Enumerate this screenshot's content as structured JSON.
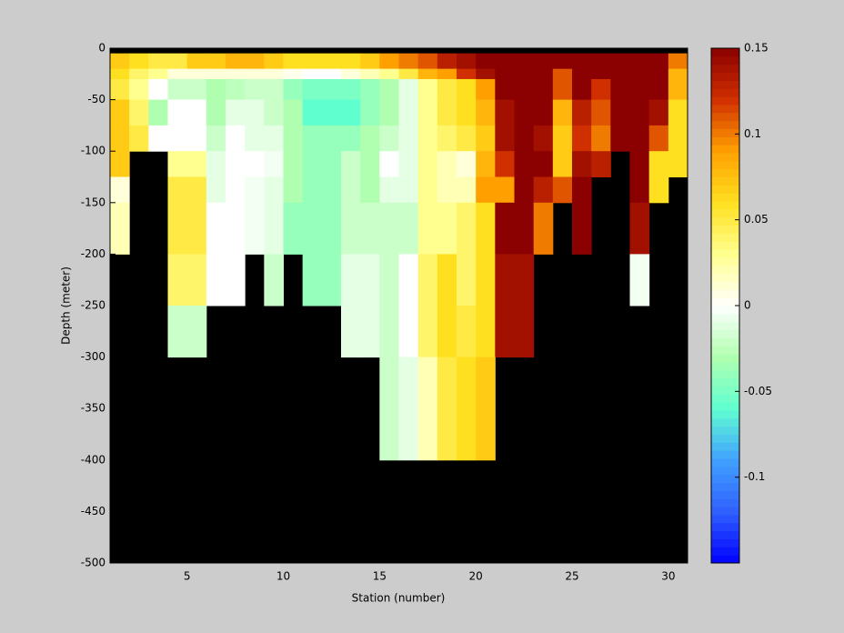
{
  "chart_data": {
    "type": "heatmap",
    "x_label": "Station (number)",
    "y_label": "Depth (meter)",
    "x": [
      1,
      2,
      3,
      4,
      5,
      6,
      7,
      8,
      9,
      10,
      11,
      12,
      13,
      14,
      15,
      16,
      17,
      18,
      19,
      20,
      21,
      22,
      23,
      24,
      25,
      26,
      27,
      28,
      29,
      30,
      31
    ],
    "y": [
      0,
      -5,
      -20,
      -30,
      -50,
      -75,
      -100,
      -125,
      -150,
      -200,
      -250,
      -300,
      -400,
      -500
    ],
    "values": [
      [
        null,
        null,
        null,
        null,
        null,
        null,
        null,
        null,
        null,
        null,
        null,
        null,
        null,
        null,
        null,
        null,
        null,
        null,
        null,
        null,
        null,
        null,
        null,
        null,
        null,
        null,
        null,
        null,
        null,
        null
      ],
      [
        0.07,
        0.06,
        0.05,
        0.05,
        0.07,
        0.07,
        0.08,
        0.08,
        0.07,
        0.06,
        0.06,
        0.06,
        0.06,
        0.07,
        0.09,
        0.1,
        0.11,
        0.13,
        0.14,
        0.15,
        0.15,
        0.15,
        0.15,
        0.15,
        0.15,
        0.15,
        0.15,
        0.15,
        0.15,
        0.1
      ],
      [
        0.06,
        0.04,
        0.03,
        0.01,
        0.01,
        0.01,
        0.01,
        0.01,
        0.01,
        0.005,
        0,
        0,
        0.01,
        0.02,
        0.03,
        0.05,
        0.08,
        0.09,
        0.12,
        0.14,
        0.15,
        0.15,
        0.15,
        0.11,
        0.15,
        0.15,
        0.15,
        0.15,
        0.15,
        0.08
      ],
      [
        0.05,
        0.03,
        0,
        -0.02,
        -0.02,
        -0.03,
        -0.025,
        -0.02,
        -0.02,
        -0.04,
        -0.05,
        -0.05,
        -0.05,
        -0.04,
        -0.03,
        -0.01,
        0.03,
        0.05,
        0.06,
        0.09,
        0.15,
        0.15,
        0.15,
        0.11,
        0.15,
        0.12,
        0.15,
        0.15,
        0.15,
        0.08
      ],
      [
        0.07,
        0.04,
        -0.03,
        0,
        0,
        -0.03,
        -0.01,
        -0.01,
        -0.02,
        -0.03,
        -0.06,
        -0.06,
        -0.06,
        -0.04,
        -0.03,
        -0.01,
        0.03,
        0.05,
        0.06,
        0.08,
        0.14,
        0.15,
        0.15,
        0.08,
        0.13,
        0.11,
        0.15,
        0.15,
        0.14,
        0.06
      ],
      [
        0.07,
        0.05,
        0,
        0,
        0,
        -0.02,
        0,
        -0.01,
        -0.01,
        -0.03,
        -0.04,
        -0.04,
        -0.04,
        -0.03,
        -0.02,
        -0.01,
        0.03,
        0.04,
        0.05,
        0.07,
        0.14,
        0.15,
        0.14,
        0.07,
        0.12,
        0.1,
        0.15,
        0.15,
        0.11,
        0.06
      ],
      [
        0.07,
        null,
        null,
        0.03,
        0.03,
        -0.01,
        0,
        0,
        -0.005,
        -0.03,
        -0.04,
        -0.04,
        -0.02,
        -0.03,
        0,
        -0.01,
        0.03,
        0.02,
        0.01,
        0.08,
        0.12,
        0.15,
        0.15,
        0.07,
        0.14,
        0.13,
        null,
        0.15,
        0.06,
        0.06
      ],
      [
        0.01,
        null,
        null,
        0.05,
        0.05,
        -0.01,
        0,
        -0.005,
        -0.01,
        -0.03,
        -0.04,
        -0.04,
        -0.02,
        -0.03,
        -0.01,
        -0.01,
        0.03,
        0.02,
        0.02,
        0.09,
        0.09,
        0.15,
        0.13,
        0.11,
        0.15,
        null,
        null,
        0.15,
        0.06,
        null
      ],
      [
        0.02,
        null,
        null,
        0.05,
        0.05,
        0,
        0,
        -0.005,
        -0.01,
        -0.04,
        -0.04,
        -0.04,
        -0.02,
        -0.02,
        -0.02,
        -0.02,
        0.03,
        0.03,
        0.04,
        0.06,
        0.15,
        0.15,
        0.1,
        null,
        0.15,
        null,
        null,
        0.14,
        null,
        null
      ],
      [
        null,
        null,
        null,
        0.04,
        0.04,
        0,
        0,
        null,
        -0.02,
        null,
        -0.04,
        -0.04,
        -0.01,
        -0.01,
        -0.02,
        0,
        0.04,
        0.06,
        0.04,
        0.06,
        0.14,
        0.14,
        null,
        null,
        null,
        null,
        null,
        -0.005,
        null,
        null
      ],
      [
        null,
        null,
        null,
        -0.02,
        -0.02,
        null,
        null,
        null,
        null,
        null,
        null,
        null,
        -0.01,
        -0.01,
        -0.02,
        0,
        0.04,
        0.06,
        0.05,
        0.06,
        0.14,
        0.14,
        null,
        null,
        null,
        null,
        null,
        null,
        null,
        null
      ],
      [
        null,
        null,
        null,
        null,
        null,
        null,
        null,
        null,
        null,
        null,
        null,
        null,
        null,
        null,
        -0.02,
        -0.01,
        0.02,
        0.05,
        0.06,
        0.07,
        null,
        null,
        null,
        null,
        null,
        null,
        null,
        null,
        null,
        null
      ],
      [
        null,
        null,
        null,
        null,
        null,
        null,
        null,
        null,
        null,
        null,
        null,
        null,
        null,
        null,
        null,
        null,
        null,
        null,
        null,
        null,
        null,
        null,
        null,
        null,
        null,
        null,
        null,
        null,
        null,
        null
      ]
    ],
    "xlim": [
      1,
      31
    ],
    "ylim": [
      -500,
      0
    ],
    "xticks": [
      5,
      10,
      15,
      20,
      25,
      30
    ],
    "yticks": [
      0,
      -50,
      -100,
      -150,
      -200,
      -250,
      -300,
      -350,
      -400,
      -450,
      -500
    ],
    "clim": [
      -0.15,
      0.15
    ],
    "cticks": [
      0.15,
      0.1,
      0.05,
      0,
      -0.05,
      -0.1
    ],
    "colormap": [
      "#0000ff",
      "#3060ff",
      "#40a0ff",
      "#60ffd0",
      "#b0ffb0",
      "#ffffff",
      "#ffff90",
      "#ffe020",
      "#ffa000",
      "#d03000",
      "#8b0000"
    ],
    "missing_color": "#000000"
  }
}
